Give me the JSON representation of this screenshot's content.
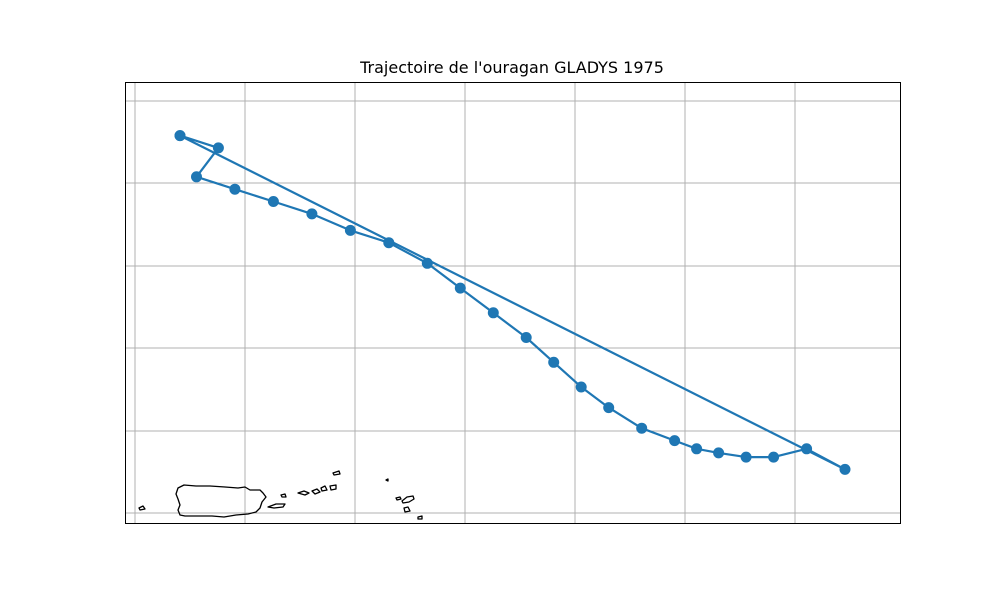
{
  "chart_data": {
    "type": "line",
    "title": "Trajectoire de l'ouragan GLADYS 1975",
    "xlabel": "",
    "ylabel": "",
    "grid": true,
    "legend": "none",
    "xlim": [
      -67.5,
      -60.45
    ],
    "ylim": [
      17.3,
      22.65
    ],
    "series": [
      {
        "name": "",
        "color": "#1f77b4",
        "marker": "circle",
        "points": [
          {
            "x": -67.0,
            "y": 22.0
          },
          {
            "x": -60.95,
            "y": 17.95
          },
          {
            "x": -61.3,
            "y": 18.2
          },
          {
            "x": -61.6,
            "y": 18.1
          },
          {
            "x": -61.85,
            "y": 18.1
          },
          {
            "x": -62.1,
            "y": 18.15
          },
          {
            "x": -62.3,
            "y": 18.2
          },
          {
            "x": -62.5,
            "y": 18.3
          },
          {
            "x": -62.8,
            "y": 18.45
          },
          {
            "x": -63.1,
            "y": 18.7
          },
          {
            "x": -63.35,
            "y": 18.95
          },
          {
            "x": -63.6,
            "y": 19.25
          },
          {
            "x": -63.85,
            "y": 19.55
          },
          {
            "x": -64.15,
            "y": 19.85
          },
          {
            "x": -64.45,
            "y": 20.15
          },
          {
            "x": -64.75,
            "y": 20.45
          },
          {
            "x": -65.1,
            "y": 20.7
          },
          {
            "x": -65.45,
            "y": 20.85
          },
          {
            "x": -65.8,
            "y": 21.05
          },
          {
            "x": -66.15,
            "y": 21.2
          },
          {
            "x": -66.5,
            "y": 21.35
          },
          {
            "x": -66.85,
            "y": 21.5
          },
          {
            "x": -66.65,
            "y": 21.85
          },
          {
            "x": -67.0,
            "y": 22.0
          }
        ]
      }
    ]
  }
}
